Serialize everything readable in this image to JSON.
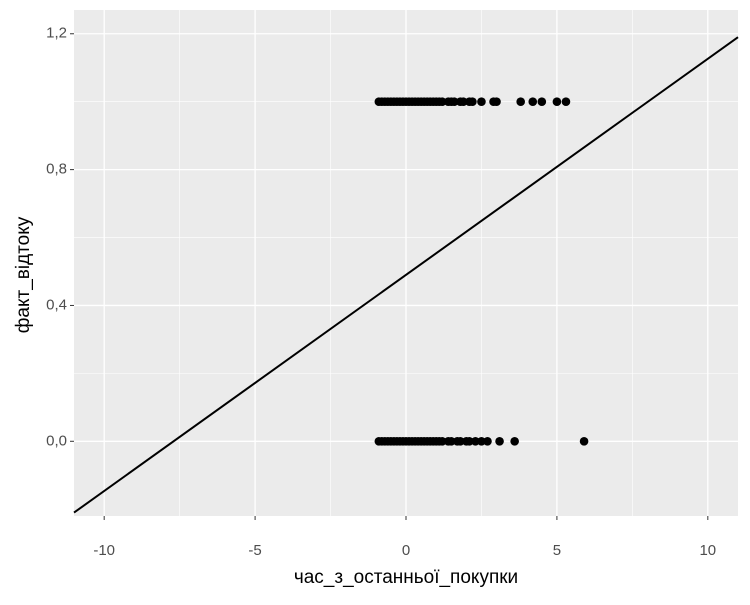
{
  "chart_data": {
    "type": "scatter",
    "xlabel": "час_з_останньої_покупки",
    "ylabel": "факт_відтоку",
    "xlim": [
      -11,
      11
    ],
    "ylim": [
      -0.22,
      1.27
    ],
    "xticks": [
      -10,
      -5,
      0,
      5,
      10
    ],
    "yticks": [
      {
        "value": 0,
        "label": "0,0"
      },
      {
        "value": 0.4,
        "label": "0,4"
      },
      {
        "value": 0.8,
        "label": "0,8"
      },
      {
        "value": 1.2,
        "label": "1,2"
      }
    ],
    "grid": true,
    "minor_grid": true,
    "series": [
      {
        "color": "#000000",
        "x": [
          -0.9,
          -0.8,
          -0.7,
          -0.6,
          -0.5,
          -0.4,
          -0.3,
          -0.2,
          -0.1,
          0,
          0.1,
          0.2,
          0.3,
          0.4,
          0.5,
          0.6,
          0.7,
          0.8,
          0.9,
          1.0,
          1.1,
          1.2,
          1.4,
          1.5,
          1.6,
          1.8,
          1.9,
          2.1,
          2.2,
          2.5,
          2.9,
          3.0,
          3.8,
          4.2,
          4.5,
          5.0,
          5.3,
          -0.9,
          -0.8,
          -0.7,
          -0.6,
          -0.5,
          -0.4,
          -0.3,
          -0.2,
          -0.1,
          0,
          0.1,
          0.2,
          0.3,
          0.4,
          0.5,
          0.6,
          0.7,
          0.8,
          0.9,
          1.0,
          1.1,
          1.2,
          1.4,
          1.5,
          1.7,
          1.8,
          2.0,
          2.1,
          2.3,
          2.5,
          2.7,
          3.1,
          3.6,
          5.9
        ],
        "values": [
          1,
          1,
          1,
          1,
          1,
          1,
          1,
          1,
          1,
          1,
          1,
          1,
          1,
          1,
          1,
          1,
          1,
          1,
          1,
          1,
          1,
          1,
          1,
          1,
          1,
          1,
          1,
          1,
          1,
          1,
          1,
          1,
          1,
          1,
          1,
          1,
          1,
          0,
          0,
          0,
          0,
          0,
          0,
          0,
          0,
          0,
          0,
          0,
          0,
          0,
          0,
          0,
          0,
          0,
          0,
          0,
          0,
          0,
          0,
          0,
          0,
          0,
          0,
          0,
          0,
          0,
          0,
          0,
          0,
          0,
          0
        ]
      }
    ],
    "fit_line": {
      "color": "#000000",
      "x": [
        -11,
        11
      ],
      "values": [
        -0.21,
        1.19
      ]
    }
  }
}
